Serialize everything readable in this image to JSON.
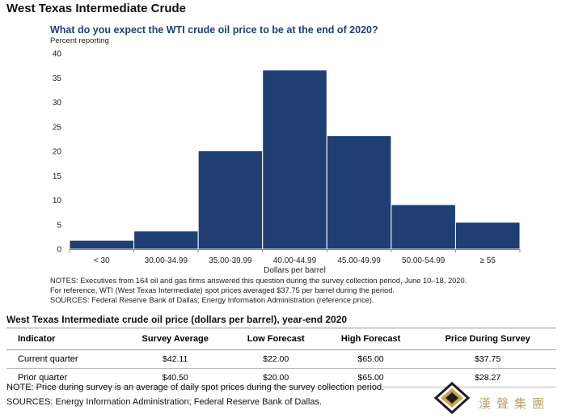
{
  "page_title": "West Texas Intermediate Crude",
  "chart_data": {
    "type": "bar",
    "title": "What do you expect the WTI crude oil price to be at the end of 2020?",
    "ylabel": "Percent reporting",
    "xlabel": "Dollars per barrel",
    "categories": [
      "< 30",
      "30.00-34.99",
      "35.00-39.99",
      "40.00-44.99",
      "45.00-49.99",
      "50.00-54.99",
      "≥ 55"
    ],
    "values": [
      1.8,
      3.7,
      20.1,
      36.6,
      23.2,
      9.1,
      5.5
    ],
    "ylim": [
      0,
      40
    ],
    "yticks": [
      "0",
      "5",
      "10",
      "15",
      "20",
      "25",
      "30",
      "35",
      "40"
    ],
    "bar_color": "#1f3f73",
    "grid": false
  },
  "notes": [
    "NOTES: Executives from 164 oil and gas firms answered this question during the survey collection period, June 10–18, 2020.",
    "For reference, WTI (West Texas Intermediate) spot prices averaged $37.75 per barrel during the period.",
    "SOURCES: Federal Reserve Bank of Dallas; Energy Information Administration (reference price)."
  ],
  "table": {
    "title": "West Texas Intermediate crude oil price (dollars per barrel), year-end 2020",
    "headers": [
      "Indicator",
      "Survey Average",
      "Low Forecast",
      "High Forecast",
      "Price During Survey"
    ],
    "rows": [
      [
        "Current quarter",
        "$42.11",
        "$22.00",
        "$65.00",
        "$37.75"
      ],
      [
        "Prior quarter",
        "$40.50",
        "$20.00",
        "$65.00",
        "$28.27"
      ]
    ]
  },
  "footnotes": {
    "note": "NOTE: Price during survey is an average of daily spot prices during the survey collection period.",
    "sources": "SOURCES: Energy Information Administration; Federal Reserve Bank of Dallas."
  },
  "watermark": {
    "text": "漢聲集團",
    "icon": "diamond-logo-icon",
    "color": "#bda36a"
  }
}
